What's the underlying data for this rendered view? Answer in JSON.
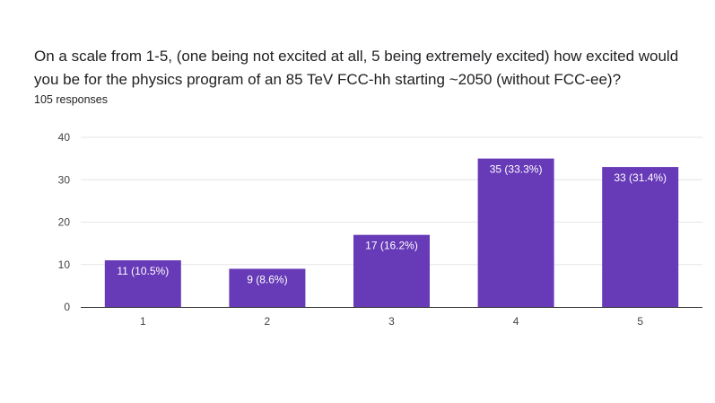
{
  "question": {
    "title": "On a scale from 1-5, (one being not excited at all, 5 being extremely excited) how excited would you be for the physics program of an 85 TeV FCC-hh starting ~2050 (without FCC-ee)?",
    "responses": "105 responses"
  },
  "colors": {
    "bar": "#673ab7",
    "grid": "#e6e6e6",
    "axis": "#333333"
  },
  "chart_data": {
    "type": "bar",
    "title": "",
    "xlabel": "",
    "ylabel": "",
    "categories": [
      "1",
      "2",
      "3",
      "4",
      "5"
    ],
    "values": [
      11,
      9,
      17,
      35,
      33
    ],
    "data_labels": [
      "11 (10.5%)",
      "9 (8.6%)",
      "17 (16.2%)",
      "35 (33.3%)",
      "33 (31.4%)"
    ],
    "ylim": [
      0,
      40
    ],
    "yticks": [
      0,
      10,
      20,
      30,
      40
    ],
    "grid": true,
    "legend": "none"
  }
}
